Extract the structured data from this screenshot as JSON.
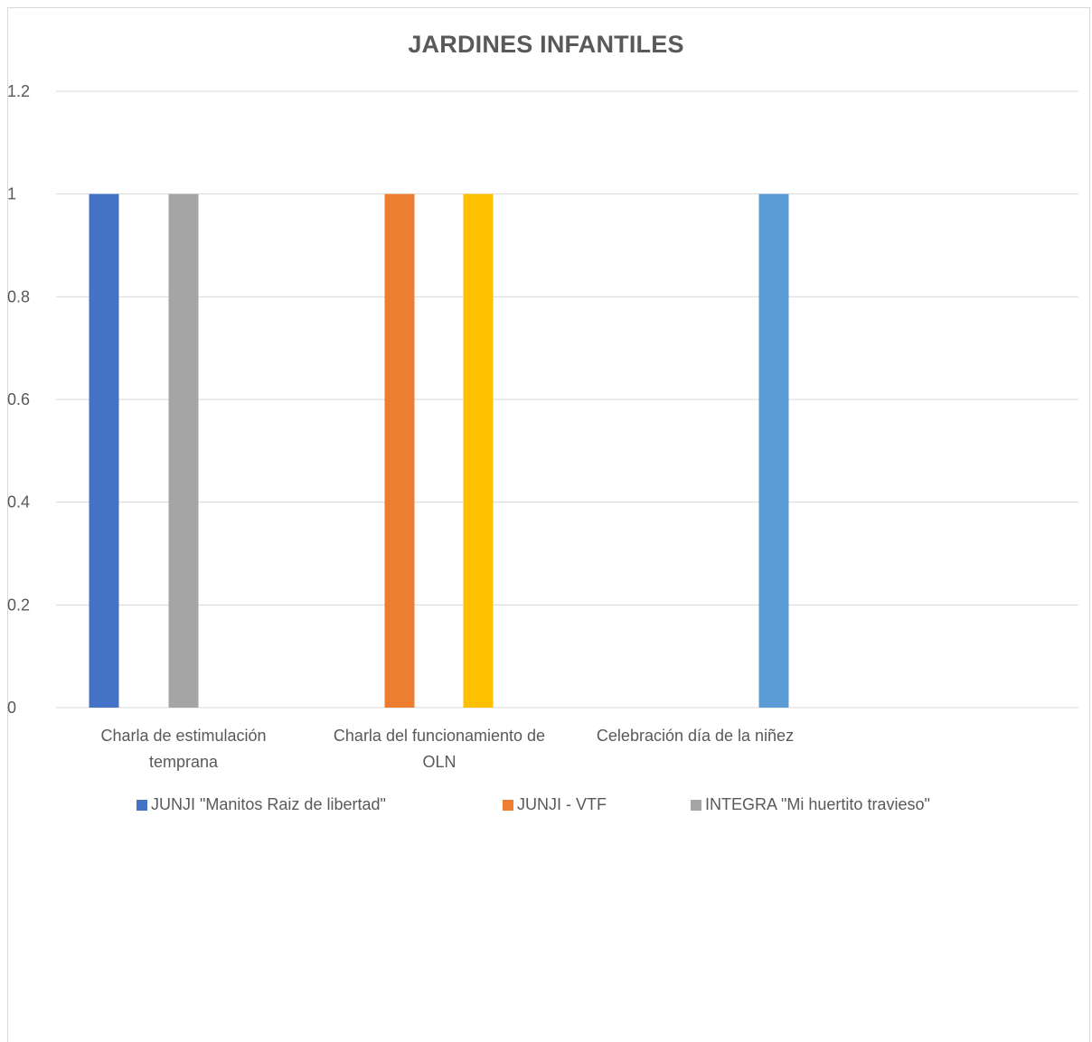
{
  "chart_data": {
    "type": "bar",
    "title": "JARDINES INFANTILES",
    "xlabel": "",
    "ylabel": "",
    "ylim": [
      0,
      1.2
    ],
    "yticks": [
      "0",
      "0.2",
      "0.4",
      "0.6",
      "0.8",
      "1",
      "1.2"
    ],
    "grid": true,
    "legend_position": "bottom",
    "categories": [
      "Charla de estimulación temprana",
      "Charla del funcionamiento de OLN",
      "Celebración día de la niñez"
    ],
    "series": [
      {
        "name": "JUNJI \"Manitos Raiz de libertad\"",
        "color": "#4472C4",
        "values": [
          1,
          null,
          null
        ]
      },
      {
        "name": "JUNJI - VTF",
        "color": "#ED7D31",
        "values": [
          null,
          1,
          null
        ]
      },
      {
        "name": "INTEGRA \"Mi huertito travieso\"",
        "color": "#A5A5A5",
        "values": [
          1,
          null,
          null
        ]
      },
      {
        "name": "",
        "color": "#FFC000",
        "values": [
          null,
          1,
          null
        ]
      },
      {
        "name": "",
        "color": "#5B9BD5",
        "values": [
          null,
          null,
          1
        ]
      }
    ]
  }
}
